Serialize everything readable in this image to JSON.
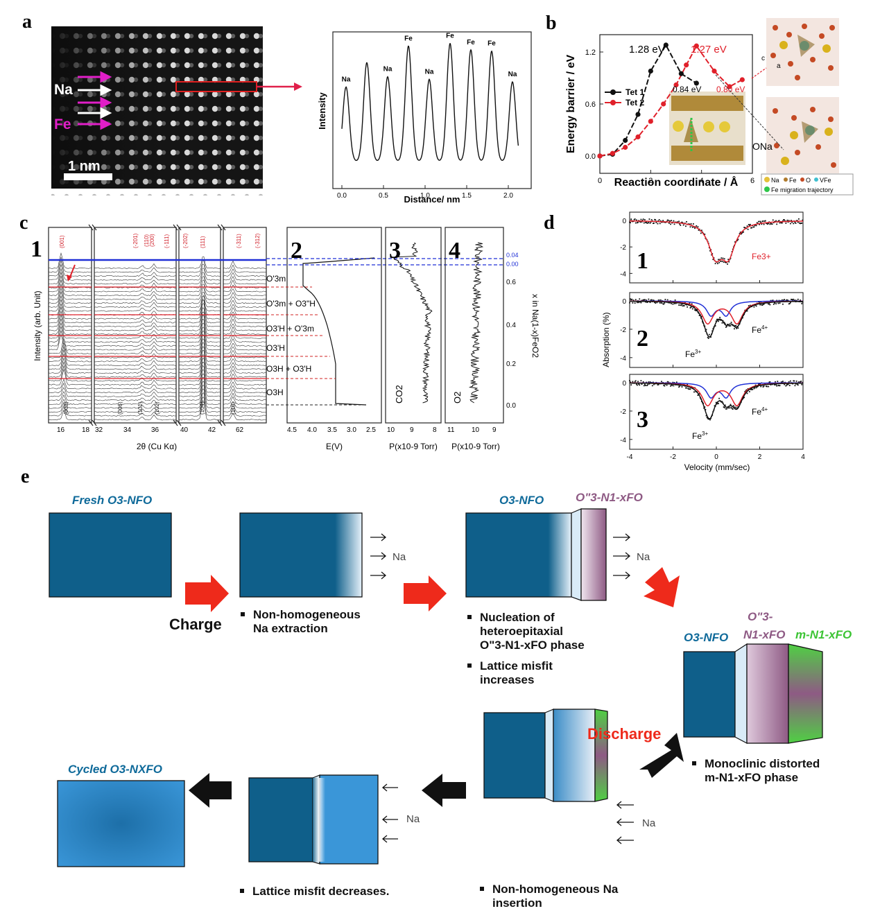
{
  "panels": {
    "a": {
      "letter": "a",
      "image": {
        "na_label": "Na",
        "fe_label": "Fe",
        "scale_label": "1 nm"
      },
      "plot": {
        "ylabel": "Intensity",
        "xlabel": "Distance/ nm",
        "xticks": [
          "0.0",
          "0.5",
          "1.0",
          "1.5",
          "2.0"
        ],
        "peak_labels": [
          "Na",
          "Na",
          "Fe",
          "Na",
          "Fe",
          "Fe",
          "Fe",
          "Na"
        ]
      }
    },
    "b": {
      "letter": "b",
      "ylabel": "Energy barrier / eV",
      "xlabel": "Reaction coordinate / Å",
      "yticks": [
        "0.0",
        "0.6",
        "1.2"
      ],
      "xticks": [
        "0",
        "2",
        "4",
        "6"
      ],
      "legend": [
        "Tet 1",
        "Tet 2"
      ],
      "annotations": [
        "1.28 eV",
        "1.27 eV",
        "0.84 eV",
        "0.80 eV"
      ],
      "o_na_label": "ONa",
      "key": [
        "Na",
        "Fe",
        "O",
        "VFe",
        "Fe migration trajectory"
      ],
      "axis_labels": [
        "c",
        "a"
      ],
      "colors": {
        "tet1": "#111111",
        "tet2": "#e0202a"
      }
    },
    "c": {
      "letter": "c",
      "subpanels": [
        "1",
        "2",
        "3",
        "4"
      ],
      "ylabel": "Intensity (arb. Unit)",
      "xlabel_xrd": "2θ (Cu Kα)",
      "xticks_xrd": [
        "16",
        "18",
        "32",
        "34",
        "36",
        "40",
        "42",
        "62"
      ],
      "red_hkl": [
        "(001)",
        "(-201)",
        "(110)",
        "(200)",
        "(-111)",
        "(-202)",
        "(111)",
        "(-311)",
        "(-312)"
      ],
      "black_hkl": [
        "(003)",
        "(006)",
        "(101)",
        "(102)",
        "(104)",
        "(110)"
      ],
      "phases": [
        "O'3m",
        "O'3m + O3\"H",
        "O3'H + O'3m",
        "O3'H",
        "O3H + O3'H",
        "O3H"
      ],
      "e_label": "E(V)",
      "e_ticks": [
        "4.5",
        "4.0",
        "3.5",
        "3.0",
        "2.5"
      ],
      "co2_label": "CO2",
      "o2_label": "O2",
      "p_label_3": "P(x10-9 Torr)",
      "p_label_4": "P(x10-9 Torr)",
      "p_ticks_3": [
        "10",
        "9",
        "8"
      ],
      "p_ticks_4": [
        "11",
        "10",
        "9"
      ],
      "right_axis_label": "x in Na(1-x)FeO2",
      "right_ticks": [
        "0.0",
        "0.2",
        "0.4",
        "0.6"
      ],
      "blue_ticks": [
        "0.04",
        "0.00"
      ]
    },
    "d": {
      "letter": "d",
      "ylabel": "Absorption (%)",
      "xlabel": "Velocity (mm/sec)",
      "xticks": [
        "-4",
        "-2",
        "0",
        "2",
        "4"
      ],
      "yticks": [
        "0",
        "-2",
        "-4"
      ],
      "sub": [
        "1",
        "2",
        "3"
      ],
      "fe3_red": "Fe3+",
      "fe3": "Fe",
      "fe4": "Fe",
      "sup3": "3+",
      "sup4": "4+"
    },
    "e": {
      "letter": "e",
      "fresh_label": "Fresh O3-NFO",
      "o3nfo": "O3-NFO",
      "o3nfo2": "O3-NFO",
      "opp_label_top": "O\"3-N1-xFO",
      "opp_label_2a": "O\"3-",
      "opp_label_2b": "N1-xFO",
      "m_label": "m-N1-xFO",
      "cycled_label": "Cycled O3-NXFO",
      "na": "Na",
      "charge": "Charge",
      "discharge": "Discharge",
      "bullets": {
        "b1": [
          "Non-homogeneous",
          "Na extraction"
        ],
        "b2": [
          "Nucleation of",
          "heteroepitaxial",
          "O\"3-N1-xFO phase"
        ],
        "b3": [
          "Lattice misfit",
          "increases"
        ],
        "b4": [
          "Monoclinic distorted",
          "m-N1-xFO phase"
        ],
        "b5": [
          "Lattice misfit decreases."
        ],
        "b6": [
          "Non-homogeneous Na",
          "insertion"
        ]
      },
      "colors": {
        "blue": "#0f5f8a",
        "purple": "#8e5a84",
        "green": "#4fd043",
        "red": "#ee2a1b",
        "black": "#111111"
      }
    }
  }
}
